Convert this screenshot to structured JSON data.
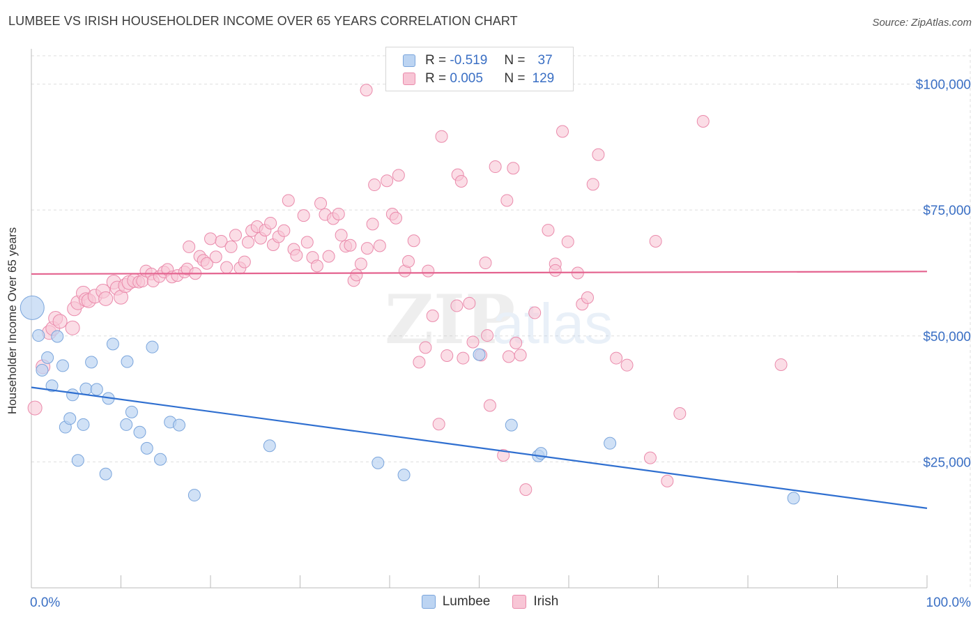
{
  "title": "LUMBEE VS IRISH HOUSEHOLDER INCOME OVER 65 YEARS CORRELATION CHART",
  "source": "Source: ZipAtlas.com",
  "colors": {
    "lumbee_fill": "#bcd4f2",
    "lumbee_stroke": "#7aa5dc",
    "lumbee_line": "#2f6fd0",
    "irish_fill": "#f8c6d6",
    "irish_stroke": "#ea8aab",
    "irish_line": "#e4638f",
    "tick_label": "#3a6fc4",
    "grid": "#dedede"
  },
  "legend": {
    "lumbee": {
      "r_label": "R =",
      "r_value": "-0.519",
      "n_label": "N =",
      "n_value": "37"
    },
    "irish": {
      "r_label": "R =",
      "r_value": "0.005",
      "n_label": "N =",
      "n_value": "129"
    }
  },
  "chart_data": {
    "type": "scatter",
    "title": "LUMBEE VS IRISH HOUSEHOLDER INCOME OVER 65 YEARS CORRELATION CHART",
    "xlabel": "",
    "ylabel": "Householder Income Over 65 years",
    "xlim": [
      0,
      100
    ],
    "ylim": [
      0,
      107000
    ],
    "x_tick_labels": [
      "0.0%",
      "100.0%"
    ],
    "y_ticks": [
      25000,
      50000,
      75000,
      100000
    ],
    "y_tick_labels": [
      "$25,000",
      "$50,000",
      "$75,000",
      "$100,000"
    ],
    "grid": true,
    "legend_position": "bottom",
    "series": [
      {
        "name": "Lumbee",
        "trend": {
          "x": [
            0,
            100
          ],
          "y": [
            39800,
            15800
          ]
        },
        "points": [
          [
            0.1,
            55600
          ],
          [
            0.8,
            50100
          ],
          [
            1.2,
            43200
          ],
          [
            1.8,
            45700
          ],
          [
            2.3,
            40100
          ],
          [
            2.9,
            49900
          ],
          [
            3.5,
            44100
          ],
          [
            3.8,
            31900
          ],
          [
            4.3,
            33600
          ],
          [
            4.6,
            38300
          ],
          [
            5.2,
            25300
          ],
          [
            5.8,
            32400
          ],
          [
            6.1,
            39500
          ],
          [
            6.7,
            44800
          ],
          [
            7.3,
            39400
          ],
          [
            8.3,
            22600
          ],
          [
            8.6,
            37600
          ],
          [
            9.1,
            48400
          ],
          [
            10.6,
            32400
          ],
          [
            10.7,
            44900
          ],
          [
            11.2,
            34900
          ],
          [
            12.1,
            30900
          ],
          [
            12.9,
            27700
          ],
          [
            13.5,
            47800
          ],
          [
            14.4,
            25500
          ],
          [
            15.5,
            32900
          ],
          [
            16.5,
            32300
          ],
          [
            18.2,
            18400
          ],
          [
            26.6,
            28200
          ],
          [
            38.7,
            24800
          ],
          [
            41.6,
            22400
          ],
          [
            50.0,
            46300
          ],
          [
            53.6,
            32300
          ],
          [
            56.6,
            26200
          ],
          [
            56.9,
            26700
          ],
          [
            64.6,
            28700
          ],
          [
            85.1,
            17800
          ]
        ]
      },
      {
        "name": "Irish",
        "trend": {
          "x": [
            0,
            100
          ],
          "y": [
            62300,
            62800
          ]
        },
        "points": [
          [
            0.4,
            35700
          ],
          [
            1.3,
            43900
          ],
          [
            2.0,
            50700
          ],
          [
            2.4,
            51500
          ],
          [
            2.7,
            53500
          ],
          [
            3.2,
            52900
          ],
          [
            4.6,
            51600
          ],
          [
            4.8,
            55400
          ],
          [
            5.2,
            56600
          ],
          [
            5.8,
            58500
          ],
          [
            6.1,
            57200
          ],
          [
            6.4,
            57000
          ],
          [
            7.1,
            57900
          ],
          [
            8.0,
            58900
          ],
          [
            8.3,
            57400
          ],
          [
            9.2,
            60700
          ],
          [
            9.6,
            59500
          ],
          [
            10.0,
            57700
          ],
          [
            10.5,
            60000
          ],
          [
            10.9,
            60600
          ],
          [
            11.5,
            61000
          ],
          [
            12.0,
            60700
          ],
          [
            12.4,
            60900
          ],
          [
            12.8,
            62900
          ],
          [
            13.4,
            62300
          ],
          [
            13.6,
            60900
          ],
          [
            14.3,
            61800
          ],
          [
            14.8,
            62700
          ],
          [
            15.2,
            63200
          ],
          [
            15.7,
            61700
          ],
          [
            16.3,
            62000
          ],
          [
            17.1,
            62700
          ],
          [
            17.4,
            63300
          ],
          [
            17.6,
            67700
          ],
          [
            18.3,
            62400
          ],
          [
            18.8,
            65800
          ],
          [
            19.2,
            65000
          ],
          [
            19.6,
            64400
          ],
          [
            20.0,
            69300
          ],
          [
            20.6,
            65700
          ],
          [
            21.2,
            68800
          ],
          [
            21.8,
            63600
          ],
          [
            22.3,
            67700
          ],
          [
            22.8,
            70000
          ],
          [
            23.3,
            63500
          ],
          [
            23.8,
            64700
          ],
          [
            24.2,
            68600
          ],
          [
            24.6,
            70900
          ],
          [
            25.2,
            71700
          ],
          [
            25.6,
            69400
          ],
          [
            26.1,
            71000
          ],
          [
            26.7,
            72400
          ],
          [
            27.0,
            68100
          ],
          [
            27.6,
            69700
          ],
          [
            28.2,
            70900
          ],
          [
            28.7,
            76900
          ],
          [
            29.3,
            67200
          ],
          [
            29.6,
            66000
          ],
          [
            30.4,
            73900
          ],
          [
            30.8,
            68600
          ],
          [
            31.4,
            65600
          ],
          [
            31.9,
            63900
          ],
          [
            32.3,
            76300
          ],
          [
            32.8,
            74100
          ],
          [
            33.2,
            65800
          ],
          [
            33.7,
            73300
          ],
          [
            34.3,
            74200
          ],
          [
            34.6,
            70000
          ],
          [
            35.1,
            67800
          ],
          [
            35.6,
            68000
          ],
          [
            36.0,
            61000
          ],
          [
            36.3,
            62100
          ],
          [
            36.8,
            64300
          ],
          [
            37.5,
            67400
          ],
          [
            38.1,
            72200
          ],
          [
            38.3,
            80000
          ],
          [
            38.9,
            67900
          ],
          [
            39.7,
            80800
          ],
          [
            40.3,
            74200
          ],
          [
            40.7,
            73400
          ],
          [
            41.0,
            81900
          ],
          [
            41.7,
            62900
          ],
          [
            42.1,
            64800
          ],
          [
            42.7,
            68900
          ],
          [
            43.3,
            44800
          ],
          [
            44.0,
            47700
          ],
          [
            44.3,
            62900
          ],
          [
            44.8,
            54000
          ],
          [
            45.5,
            32500
          ],
          [
            45.8,
            89600
          ],
          [
            46.4,
            46100
          ],
          [
            47.6,
            82000
          ],
          [
            48.0,
            80700
          ],
          [
            48.2,
            45600
          ],
          [
            48.9,
            56500
          ],
          [
            49.3,
            48800
          ],
          [
            50.2,
            46200
          ],
          [
            50.9,
            50100
          ],
          [
            51.2,
            36200
          ],
          [
            50.7,
            64500
          ],
          [
            51.8,
            83600
          ],
          [
            52.7,
            26300
          ],
          [
            53.1,
            76900
          ],
          [
            53.3,
            45900
          ],
          [
            53.8,
            83300
          ],
          [
            54.1,
            48600
          ],
          [
            54.6,
            46200
          ],
          [
            55.2,
            19500
          ],
          [
            56.2,
            54600
          ],
          [
            57.7,
            71000
          ],
          [
            58.5,
            64300
          ],
          [
            59.3,
            90600
          ],
          [
            59.9,
            68700
          ],
          [
            61.0,
            62500
          ],
          [
            61.5,
            56300
          ],
          [
            62.1,
            57600
          ],
          [
            62.7,
            80100
          ],
          [
            63.3,
            86000
          ],
          [
            65.3,
            45600
          ],
          [
            66.5,
            44200
          ],
          [
            69.1,
            25800
          ],
          [
            69.7,
            68800
          ],
          [
            71.0,
            21200
          ],
          [
            72.4,
            34600
          ],
          [
            75.0,
            92600
          ],
          [
            83.7,
            44300
          ],
          [
            37.4,
            98800
          ],
          [
            58.5,
            63000
          ],
          [
            47.5,
            56000
          ]
        ]
      }
    ]
  }
}
